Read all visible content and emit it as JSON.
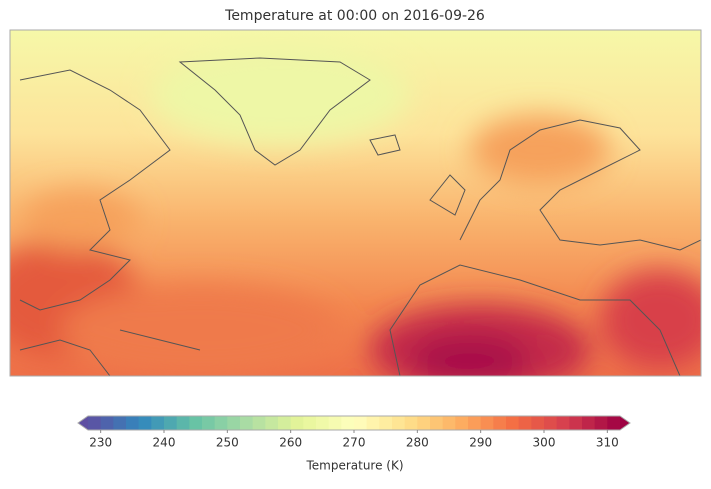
{
  "chart_data": {
    "type": "map",
    "title": "Temperature at 00:00 on 2016-09-26",
    "colorbar": {
      "label": "Temperature (K)",
      "colormap": "Spectral_r",
      "extend": "both",
      "lim": [
        228,
        312
      ],
      "ticks": [
        230,
        240,
        250,
        260,
        270,
        280,
        290,
        300,
        310
      ]
    }
  }
}
